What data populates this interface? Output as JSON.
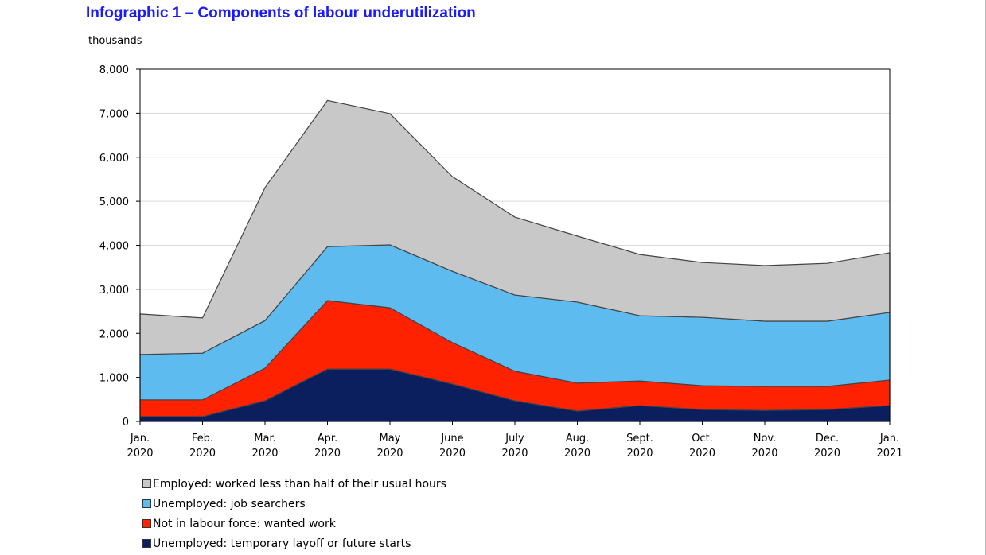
{
  "title": "Infographic 1 –  Components of labour underutilization",
  "chart_data": {
    "type": "area",
    "stacked": true,
    "ylabel": "thousands",
    "ylim": [
      0,
      8000
    ],
    "yticks": [
      "0",
      "1,000",
      "2,000",
      "3,000",
      "4,000",
      "5,000",
      "6,000",
      "7,000",
      "8,000"
    ],
    "categories": [
      [
        "Jan.",
        "2020"
      ],
      [
        "Feb.",
        "2020"
      ],
      [
        "Mar.",
        "2020"
      ],
      [
        "Apr.",
        "2020"
      ],
      [
        "May",
        "2020"
      ],
      [
        "June",
        "2020"
      ],
      [
        "July",
        "2020"
      ],
      [
        "Aug.",
        "2020"
      ],
      [
        "Sept.",
        "2020"
      ],
      [
        "Oct.",
        "2020"
      ],
      [
        "Nov.",
        "2020"
      ],
      [
        "Dec.",
        "2020"
      ],
      [
        "Jan.",
        "2021"
      ]
    ],
    "grid": "horizontal",
    "legend_position": "bottom",
    "series": [
      {
        "name": "Unemployed: temporary layoff or future starts",
        "color": "#0b1f5e",
        "values": [
          110,
          110,
          470,
          1190,
          1190,
          850,
          470,
          235,
          360,
          270,
          250,
          270,
          360
        ]
      },
      {
        "name": "Not in labour force: wanted work",
        "color": "#ff2200",
        "values": [
          380,
          380,
          740,
          1555,
          1390,
          940,
          670,
          635,
          560,
          540,
          545,
          525,
          580
        ]
      },
      {
        "name": "Unemployed: job searchers",
        "color": "#5ebbf0",
        "values": [
          1030,
          1060,
          1080,
          1225,
          1430,
          1620,
          1730,
          1840,
          1480,
          1555,
          1480,
          1480,
          1535
        ]
      },
      {
        "name": "Employed: worked less than half of their usual hours",
        "color": "#c8c8c8",
        "values": [
          920,
          800,
          3020,
          3320,
          2980,
          2150,
          1770,
          1500,
          1390,
          1245,
          1265,
          1315,
          1355
        ]
      }
    ],
    "legend_order": [
      3,
      2,
      1,
      0
    ]
  }
}
